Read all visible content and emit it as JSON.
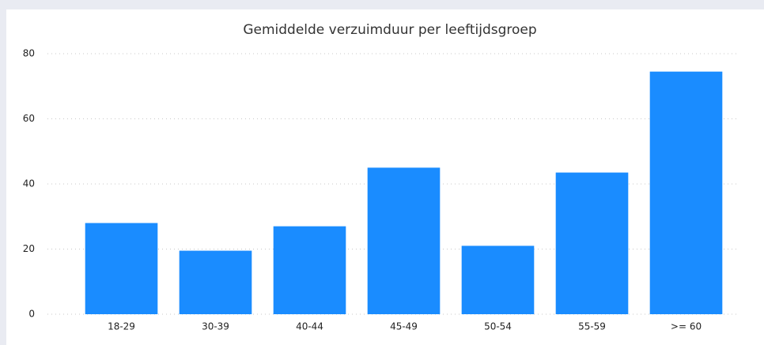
{
  "chart_data": {
    "type": "bar",
    "title": "Gemiddelde verzuimduur per leeftijdsgroep",
    "categories": [
      "18-29",
      "30-39",
      "40-44",
      "45-49",
      "50-54",
      "55-59",
      ">= 60"
    ],
    "values": [
      28,
      19.5,
      27,
      45,
      21,
      43.5,
      74.5
    ],
    "color": "#1a8cff",
    "ylim": [
      0,
      80
    ],
    "yticks": [
      0,
      20,
      40,
      60,
      80
    ],
    "grid": true
  }
}
